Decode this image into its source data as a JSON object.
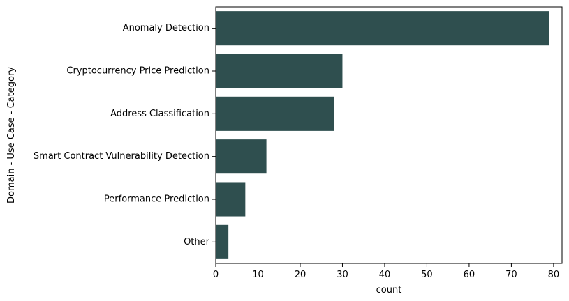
{
  "colors": {
    "bar": "#2f4f4f",
    "axis": "#000000",
    "background": "#ffffff"
  },
  "chart_data": {
    "type": "bar",
    "orientation": "horizontal",
    "categories": [
      "Anomaly Detection",
      "Cryptocurrency Price Prediction",
      "Address Classification",
      "Smart Contract Vulnerability Detection",
      "Performance Prediction",
      "Other"
    ],
    "values": [
      79,
      30,
      28,
      12,
      7,
      3
    ],
    "xlabel": "count",
    "ylabel": "Domain - Use Case - Category",
    "xlim": [
      0,
      82
    ],
    "xticks": [
      0,
      10,
      20,
      30,
      40,
      50,
      60,
      70,
      80
    ],
    "grid": false,
    "legend": "none"
  }
}
